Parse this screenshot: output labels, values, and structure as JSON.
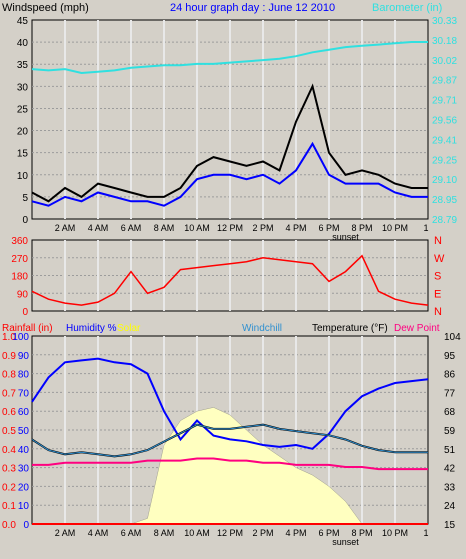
{
  "header": {
    "top_left": "Windspeed (mph)",
    "title": "24 hour graph day : June 12 2010",
    "top_right": "Barometer (in)"
  },
  "colors": {
    "background": "#d4d0c8",
    "plot_bg": "#d4d0c8",
    "grid": "#9c9c9c",
    "wind": "#000000",
    "wind_avg": "#0000ff",
    "gust_grey": "#808080",
    "barometer": "#30e0e0",
    "direction": "#ff0000",
    "humidity": "#0000ff",
    "temperature": "#000000",
    "dewpoint": "#ff0080",
    "windchill": "#3090d0",
    "solar": "#ffffc0",
    "rain": "#ff0000",
    "blue_text": "#0000ff",
    "left_axis_text": "#000000",
    "cyan_text": "#30e0e0",
    "red_text": "#ff0000",
    "solar_text": "#ffff00"
  },
  "time_labels": [
    "2 AM",
    "4 AM",
    "6 AM",
    "8 AM",
    "10 AM",
    "12 PM",
    "2 PM",
    "4 PM",
    "6 PM",
    "8 PM",
    "10 PM"
  ],
  "sunset_label": "sunset",
  "chart_data": [
    {
      "type": "line",
      "ylabel": "Windspeed (mph)",
      "ylabel_right": "Barometer (in)",
      "ylim": [
        0,
        45
      ],
      "yticks": [
        "45",
        "40",
        "35",
        "30",
        "25",
        "20",
        "15",
        "10",
        "5",
        "0"
      ],
      "ylim_right": [
        28.79,
        30.33
      ],
      "yticks_right": [
        "30.33",
        "30.18",
        "30.02",
        "29.87",
        "29.71",
        "29.56",
        "29.41",
        "29.25",
        "29.10",
        "28.95",
        "28.79"
      ],
      "x_hours": [
        0,
        1,
        2,
        3,
        4,
        5,
        6,
        7,
        8,
        9,
        10,
        11,
        12,
        13,
        14,
        15,
        16,
        17,
        18,
        19,
        20,
        21,
        22,
        23,
        24
      ],
      "series": [
        {
          "values": [
            6,
            4,
            7,
            5,
            8,
            7,
            6,
            5,
            5,
            7,
            12,
            14,
            13,
            12,
            13,
            11,
            22,
            30,
            15,
            10,
            11,
            10,
            8,
            7,
            7
          ]
        },
        {
          "values": [
            4,
            3,
            5,
            4,
            6,
            5,
            4,
            4,
            3,
            5,
            9,
            10,
            10,
            9,
            10,
            8,
            11,
            17,
            10,
            8,
            8,
            8,
            6,
            5,
            5
          ]
        },
        {
          "values": [
            29.95,
            29.94,
            29.95,
            29.92,
            29.93,
            29.94,
            29.96,
            29.97,
            29.98,
            29.98,
            29.99,
            29.99,
            30.0,
            30.01,
            30.02,
            30.03,
            30.05,
            30.08,
            30.1,
            30.12,
            30.13,
            30.14,
            30.15,
            30.16,
            30.16
          ]
        }
      ]
    },
    {
      "type": "line",
      "y_direction_labels": [
        "N",
        "W",
        "S",
        "E",
        "N"
      ],
      "yticks": [
        "360",
        "270",
        "180",
        "90",
        "0"
      ],
      "ylim": [
        0,
        360
      ],
      "x_hours": [
        0,
        1,
        2,
        3,
        4,
        5,
        6,
        7,
        8,
        9,
        10,
        11,
        12,
        13,
        14,
        15,
        16,
        17,
        18,
        19,
        20,
        21,
        22,
        23,
        24
      ],
      "series": [
        {
          "values": [
            100,
            60,
            40,
            30,
            45,
            90,
            200,
            90,
            120,
            210,
            220,
            230,
            240,
            250,
            270,
            260,
            250,
            240,
            150,
            200,
            280,
            100,
            60,
            40,
            30
          ]
        }
      ]
    },
    {
      "type": "line",
      "legend": [
        "Rainfall (in)",
        "Humidity %",
        "Solar",
        "Windchill",
        "Temperature (°F)",
        "Dew Point"
      ],
      "yticks_left_red": [
        "1.0",
        "0.9",
        "0.8",
        "0.7",
        "0.6",
        "0.5",
        "0.4",
        "0.3",
        "0.2",
        "0.1",
        "0.0"
      ],
      "yticks_left_blue": [
        "100",
        "90",
        "80",
        "70",
        "60",
        "50",
        "40",
        "30",
        "20",
        "10",
        "0"
      ],
      "ylim_humidity": [
        0,
        100
      ],
      "yticks_right": [
        "104",
        "95",
        "86",
        "77",
        "68",
        "59",
        "51",
        "42",
        "33",
        "24",
        "15"
      ],
      "ylim_right": [
        15,
        104
      ],
      "x_hours": [
        0,
        1,
        2,
        3,
        4,
        5,
        6,
        7,
        8,
        9,
        10,
        11,
        12,
        13,
        14,
        15,
        16,
        17,
        18,
        19,
        20,
        21,
        22,
        23,
        24
      ],
      "series": [
        {
          "values": [
            65,
            78,
            86,
            87,
            88,
            86,
            85,
            80,
            60,
            45,
            55,
            47,
            45,
            44,
            42,
            41,
            42,
            40,
            48,
            60,
            68,
            72,
            75,
            76,
            77
          ]
        },
        {
          "values": [
            55,
            50,
            48,
            49,
            48,
            47,
            48,
            50,
            54,
            58,
            62,
            60,
            60,
            61,
            62,
            60,
            59,
            58,
            57,
            55,
            52,
            50,
            49,
            49,
            49
          ]
        },
        {
          "values": [
            43,
            43,
            44,
            44,
            44,
            44,
            44,
            45,
            45,
            45,
            46,
            46,
            45,
            45,
            44,
            44,
            43,
            43,
            43,
            42,
            42,
            41,
            41,
            41,
            41
          ]
        },
        {
          "values": [
            0,
            0,
            0,
            0,
            0,
            0,
            0,
            30,
            420,
            550,
            600,
            620,
            580,
            500,
            420,
            360,
            300,
            260,
            200,
            120,
            0,
            0,
            0,
            0,
            0
          ]
        },
        {
          "values": [
            0,
            0,
            0,
            0,
            0,
            0,
            0,
            0,
            0,
            0,
            0,
            0,
            0,
            0,
            0,
            0,
            0,
            0,
            0,
            0,
            0,
            0,
            0,
            0,
            0
          ]
        }
      ]
    }
  ]
}
